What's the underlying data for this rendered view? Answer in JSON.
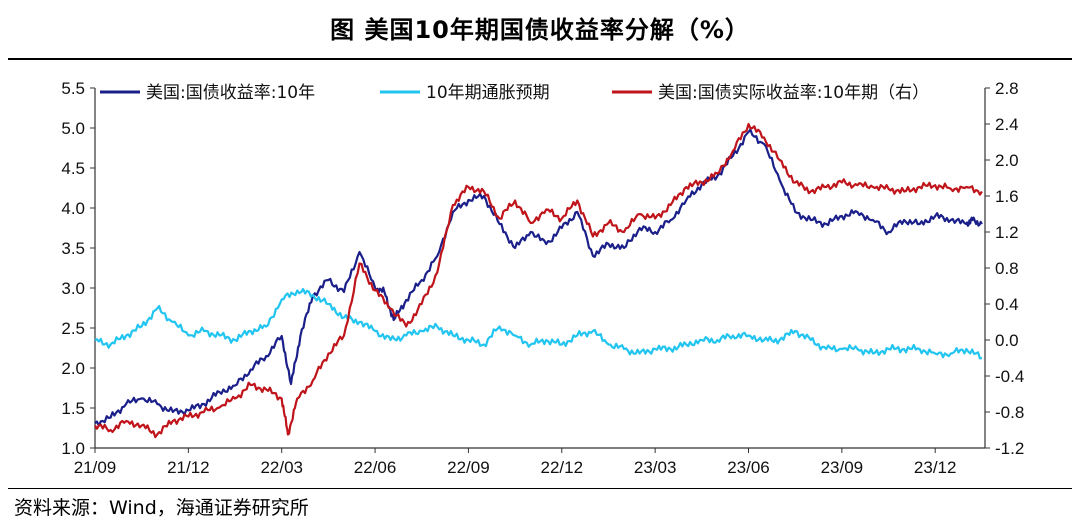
{
  "title": "图  美国10年期国债收益率分解（%）",
  "source": "资料来源：Wind，海通证券研究所",
  "colors": {
    "nominal": "#1b1f8a",
    "breakeven": "#22c4f0",
    "real": "#c0141b",
    "axis": "#333333"
  },
  "chart_data": {
    "type": "line",
    "title": "美国10年期国债收益率分解（%）",
    "x_ticks": [
      "21/09",
      "21/12",
      "22/03",
      "22/06",
      "22/09",
      "22/12",
      "23/03",
      "23/06",
      "23/09",
      "23/12"
    ],
    "x_range": [
      "2021-09",
      "2024-01"
    ],
    "y_left": {
      "ticks": [
        "1.0",
        "1.5",
        "2.0",
        "2.5",
        "3.0",
        "3.5",
        "4.0",
        "4.5",
        "5.0",
        "5.5"
      ],
      "range": [
        1.0,
        5.5
      ]
    },
    "y_right": {
      "ticks": [
        "-1.2",
        "-0.8",
        "-0.4",
        "0.0",
        "0.4",
        "0.8",
        "1.2",
        "1.6",
        "2.0",
        "2.4",
        "2.8"
      ],
      "range": [
        -1.2,
        2.8
      ]
    },
    "series": [
      {
        "name": "美国:国债收益率:10年",
        "axis": "left",
        "color": "#1b1f8a",
        "x": [
          0,
          0.5,
          1,
          1.5,
          2,
          2.5,
          3,
          3.5,
          4,
          4.5,
          5,
          5.5,
          6,
          6.3,
          6.6,
          7,
          7.5,
          8,
          8.5,
          9,
          9.3,
          9.6,
          10,
          10.5,
          11,
          11.5,
          12,
          12.5,
          13,
          13.5,
          14,
          14.5,
          15,
          15.5,
          16,
          16.5,
          17,
          17.5,
          18,
          18.5,
          19,
          19.5,
          20,
          20.5,
          21,
          21.5,
          22,
          22.5,
          23,
          23.5,
          24,
          24.5,
          25,
          25.5,
          26,
          26.5,
          27,
          27.5,
          28,
          28.2,
          28.5
        ],
        "values": [
          1.31,
          1.38,
          1.55,
          1.62,
          1.55,
          1.45,
          1.47,
          1.55,
          1.7,
          1.78,
          1.98,
          2.15,
          2.4,
          1.8,
          2.4,
          2.9,
          3.1,
          2.95,
          3.45,
          3.0,
          2.95,
          2.6,
          2.85,
          3.1,
          3.4,
          3.95,
          4.1,
          4.15,
          3.8,
          3.5,
          3.7,
          3.55,
          3.75,
          3.95,
          3.4,
          3.55,
          3.5,
          3.75,
          3.7,
          3.85,
          4.1,
          4.3,
          4.4,
          4.65,
          4.95,
          4.8,
          4.35,
          3.95,
          3.85,
          3.8,
          3.9,
          3.95,
          3.85,
          3.7,
          3.85,
          3.8,
          3.9,
          3.85,
          3.8,
          3.85,
          3.8
        ]
      },
      {
        "name": "10年期通胀预期",
        "axis": "right",
        "color": "#22c4f0",
        "x": [
          0,
          0.5,
          1,
          1.5,
          2,
          2.5,
          3,
          3.5,
          4,
          4.5,
          5,
          5.5,
          6,
          6.5,
          7,
          7.5,
          8,
          8.5,
          9,
          9.5,
          10,
          10.5,
          11,
          11.5,
          12,
          12.5,
          13,
          13.5,
          14,
          14.5,
          15,
          15.5,
          16,
          16.5,
          17,
          17.5,
          18,
          18.5,
          19,
          19.5,
          20,
          20.5,
          21,
          21.5,
          22,
          22.5,
          23,
          23.5,
          24,
          24.5,
          25,
          25.5,
          26,
          26.5,
          27,
          27.5,
          28,
          28.5
        ],
        "values": [
          0.0,
          -0.05,
          0.05,
          0.15,
          0.35,
          0.2,
          0.05,
          0.1,
          0.05,
          0.0,
          0.1,
          0.15,
          0.45,
          0.55,
          0.5,
          0.4,
          0.25,
          0.2,
          0.1,
          0.0,
          0.05,
          0.1,
          0.15,
          0.05,
          0.0,
          -0.05,
          0.15,
          0.05,
          -0.05,
          0.0,
          -0.05,
          0.05,
          0.1,
          -0.05,
          -0.1,
          -0.15,
          -0.1,
          -0.1,
          -0.05,
          0.0,
          0.0,
          0.05,
          0.05,
          0.0,
          0.0,
          0.1,
          0.0,
          -0.1,
          -0.1,
          -0.1,
          -0.15,
          -0.1,
          -0.1,
          -0.1,
          -0.15,
          -0.15,
          -0.1,
          -0.2
        ]
      },
      {
        "name": "美国:国债实际收益率:10年期（右）",
        "axis": "right",
        "color": "#c0141b",
        "x": [
          0,
          0.5,
          1,
          1.5,
          2,
          2.5,
          3,
          3.5,
          4,
          4.5,
          5,
          5.5,
          6,
          6.2,
          6.5,
          7,
          7.5,
          8,
          8.5,
          9,
          9.5,
          10,
          10.5,
          11,
          11.5,
          12,
          12.5,
          13,
          13.5,
          14,
          14.5,
          15,
          15.5,
          16,
          16.5,
          17,
          17.5,
          18,
          18.5,
          19,
          19.5,
          20,
          20.5,
          21,
          21.5,
          22,
          22.5,
          23,
          23.5,
          24,
          24.5,
          25,
          25.5,
          26,
          26.5,
          27,
          27.5,
          28,
          28.5
        ],
        "values": [
          -0.95,
          -1.0,
          -0.9,
          -0.95,
          -1.05,
          -0.9,
          -0.85,
          -0.8,
          -0.75,
          -0.65,
          -0.5,
          -0.55,
          -0.65,
          -1.05,
          -0.65,
          -0.45,
          -0.15,
          0.05,
          0.85,
          0.55,
          0.35,
          0.15,
          0.4,
          0.75,
          1.5,
          1.7,
          1.65,
          1.35,
          1.55,
          1.3,
          1.45,
          1.35,
          1.55,
          1.15,
          1.3,
          1.2,
          1.4,
          1.35,
          1.5,
          1.7,
          1.75,
          1.85,
          2.1,
          2.4,
          2.25,
          2.0,
          1.75,
          1.65,
          1.7,
          1.75,
          1.72,
          1.7,
          1.68,
          1.65,
          1.7,
          1.72,
          1.68,
          1.7,
          1.65
        ]
      }
    ],
    "legend": {
      "placement": "top",
      "entries": [
        "美国:国债收益率:10年",
        "10年期通胀预期",
        "美国:国债实际收益率:10年期（右）"
      ]
    }
  }
}
